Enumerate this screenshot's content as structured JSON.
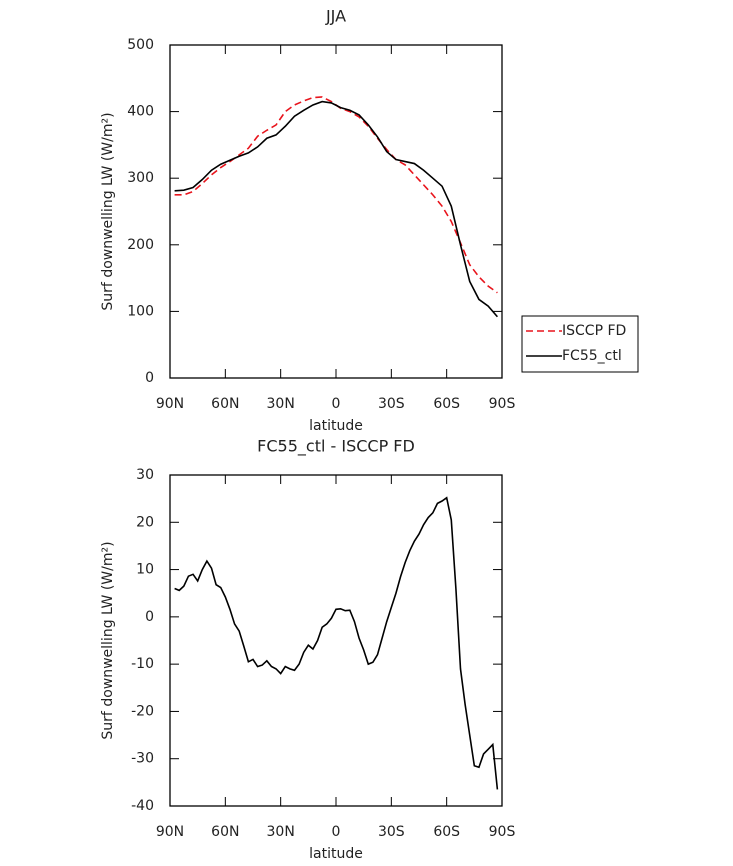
{
  "chart_data": [
    {
      "type": "line",
      "title": "JJA",
      "xlabel": "latitude",
      "ylabel": "Surf downwelling LW (W/m²)",
      "x": [
        87.5,
        82.5,
        77.5,
        72.5,
        67.5,
        62.5,
        57.5,
        52.5,
        47.5,
        42.5,
        37.5,
        32.5,
        27.5,
        22.5,
        17.5,
        12.5,
        7.5,
        2.5,
        -2.5,
        -7.5,
        -12.5,
        -17.5,
        -22.5,
        -27.5,
        -32.5,
        -37.5,
        -42.5,
        -47.5,
        -52.5,
        -57.5,
        -62.5,
        -67.5,
        -72.5,
        -77.5,
        -82.5,
        -87.5
      ],
      "series": [
        {
          "name": "ISCCP FD",
          "color": "#e8141c",
          "linestyle": "dashed",
          "values": [
            275,
            275,
            280,
            292,
            305,
            316,
            325,
            335,
            345,
            363,
            372,
            380,
            400,
            410,
            416,
            421,
            422,
            415,
            405,
            400,
            392,
            378,
            360,
            343,
            328,
            320,
            305,
            290,
            275,
            258,
            235,
            203,
            170,
            152,
            138,
            128
          ]
        },
        {
          "name": "FC55_ctl",
          "color": "#000000",
          "linestyle": "solid",
          "values": [
            281,
            282,
            286,
            298,
            312,
            321,
            327,
            333,
            338,
            347,
            360,
            365,
            378,
            393,
            402,
            410,
            415,
            413,
            406,
            402,
            395,
            380,
            362,
            340,
            328,
            325,
            322,
            312,
            300,
            288,
            258,
            200,
            145,
            118,
            108,
            92
          ]
        }
      ],
      "xlim": [
        90,
        -90
      ],
      "xticks": [
        {
          "value": 90,
          "label": "90N"
        },
        {
          "value": 60,
          "label": "60N"
        },
        {
          "value": 30,
          "label": "30N"
        },
        0,
        {
          "value": -30,
          "label": "30S"
        },
        {
          "value": -60,
          "label": "60S"
        },
        {
          "value": -90,
          "label": "90S"
        }
      ],
      "ylim": [
        0,
        500
      ],
      "yticks": [
        0,
        100,
        200,
        300,
        400,
        500
      ],
      "legend": "right"
    },
    {
      "type": "line",
      "title": "FC55_ctl - ISCCP FD",
      "xlabel": "latitude",
      "ylabel": "Surf downwelling LW (W/m²)",
      "x": [
        87.5,
        85,
        82.5,
        80,
        77.5,
        75,
        72.5,
        70,
        67.5,
        65,
        62.5,
        60,
        57.5,
        55,
        52.5,
        50,
        47.5,
        45,
        42.5,
        40,
        37.5,
        35,
        32.5,
        30,
        27.5,
        25,
        22.5,
        20,
        17.5,
        15,
        12.5,
        10,
        7.5,
        5,
        2.5,
        0,
        -2.5,
        -5,
        -7.5,
        -10,
        -12.5,
        -15,
        -17.5,
        -20,
        -22.5,
        -25,
        -27.5,
        -30,
        -32.5,
        -35,
        -37.5,
        -40,
        -42.5,
        -45,
        -47.5,
        -50,
        -52.5,
        -55,
        -57.5,
        -60,
        -62.5,
        -65,
        -67.5,
        -70,
        -72.5,
        -75,
        -77.5,
        -80,
        -82.5,
        -85,
        -87.5
      ],
      "series": [
        {
          "color": "#000000",
          "linestyle": "solid",
          "values": [
            6,
            5.6,
            6.5,
            8.6,
            9,
            7.6,
            10,
            11.8,
            10.3,
            6.8,
            6.2,
            4.2,
            1.6,
            -1.5,
            -3,
            -6.2,
            -9.5,
            -9,
            -10.5,
            -10.2,
            -9.3,
            -10.5,
            -11,
            -12,
            -10.5,
            -11,
            -11.3,
            -10,
            -7.5,
            -6,
            -6.8,
            -5,
            -2.2,
            -1.5,
            -0.3,
            1.6,
            1.7,
            1.3,
            1.4,
            -1,
            -4.5,
            -7,
            -10,
            -9.6,
            -8,
            -4.5,
            -1,
            2,
            5,
            8.5,
            11.5,
            14,
            16,
            17.5,
            19.5,
            21,
            22,
            24,
            24.5,
            25.2,
            20.5,
            6,
            -11,
            -18.5,
            -25,
            -31.5,
            -31.8,
            -29,
            -28,
            -27,
            -36.5
          ]
        }
      ],
      "xlim": [
        90,
        -90
      ],
      "xticks": [
        {
          "value": 90,
          "label": "90N"
        },
        {
          "value": 60,
          "label": "60N"
        },
        {
          "value": 30,
          "label": "30N"
        },
        0,
        {
          "value": -30,
          "label": "30S"
        },
        {
          "value": -60,
          "label": "60S"
        },
        {
          "value": -90,
          "label": "90S"
        }
      ],
      "ylim": [
        -40,
        30
      ],
      "yticks": [
        -40,
        -30,
        -20,
        -10,
        0,
        10,
        20,
        30
      ]
    }
  ]
}
